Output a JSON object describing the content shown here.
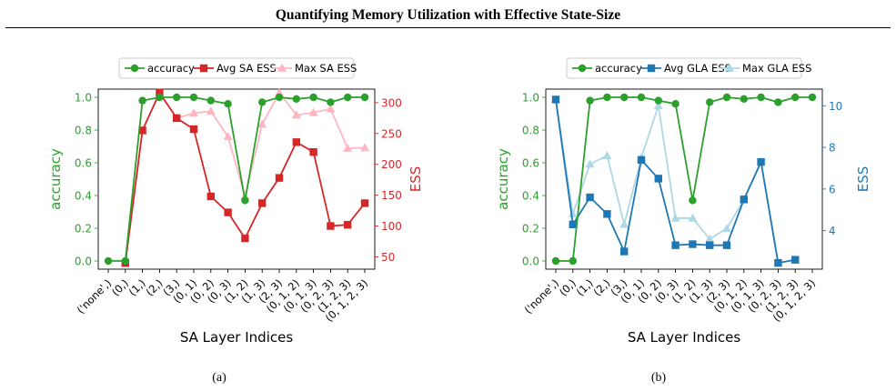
{
  "page": {
    "title": "Quantifying Memory Utilization with Effective State-Size",
    "captions": [
      "(a)",
      "(b)"
    ]
  },
  "colors": {
    "accuracy": "#2ca02c",
    "avg_sa": "#d62728",
    "max_sa": "#ffb6c1",
    "avg_gla": "#1f77b4",
    "max_gla": "#add8e6"
  },
  "chart_data": [
    {
      "type": "line",
      "categories": [
        "('none',)",
        "(0,)",
        "(1,)",
        "(2,)",
        "(3,)",
        "(0, 1)",
        "(0, 2)",
        "(0, 3)",
        "(1, 2)",
        "(1, 3)",
        "(2, 3)",
        "(0, 1, 2)",
        "(0, 1, 3)",
        "(0, 2, 3)",
        "(1, 2, 3)",
        "(0, 1, 2, 3)"
      ],
      "xlabel": "SA Layer Indices",
      "ylabel_left": "accuracy",
      "ylabel_right": "ESS",
      "ylim_left": [
        -0.05,
        1.05
      ],
      "ylim_right": [
        30,
        322
      ],
      "yticks_left": [
        "0.0",
        "0.2",
        "0.4",
        "0.6",
        "0.8",
        "1.0"
      ],
      "yticks_right": [
        "50",
        "100",
        "150",
        "200",
        "250",
        "300"
      ],
      "legend": "top",
      "series": [
        {
          "name": "accuracy",
          "axis": "left",
          "marker": "circle",
          "color": "#2ca02c",
          "values": [
            0.0,
            0.0,
            0.98,
            1.0,
            1.0,
            1.0,
            0.98,
            0.96,
            0.37,
            0.97,
            1.0,
            0.99,
            1.0,
            0.97,
            1.0,
            1.0
          ]
        },
        {
          "name": "Avg SA ESS",
          "axis": "right",
          "marker": "square",
          "color": "#d62728",
          "values": [
            null,
            40,
            255,
            316,
            275,
            257,
            148,
            122,
            80,
            137,
            178,
            236,
            220,
            100,
            102,
            137
          ]
        },
        {
          "name": "Max SA ESS",
          "axis": "right",
          "marker": "triangle",
          "color": "#ffb6c1",
          "values": [
            null,
            40,
            255,
            316,
            275,
            283,
            286,
            245,
            148,
            265,
            316,
            280,
            284,
            290,
            226,
            227
          ]
        }
      ]
    },
    {
      "type": "line",
      "categories": [
        "('none',)",
        "(0,)",
        "(1,)",
        "(2,)",
        "(3,)",
        "(0, 1)",
        "(0, 2)",
        "(0, 3)",
        "(1, 2)",
        "(1, 3)",
        "(2, 3)",
        "(0, 1, 2)",
        "(0, 1, 3)",
        "(0, 2, 3)",
        "(1, 2, 3)",
        "(0, 1, 2, 3)"
      ],
      "xlabel": "SA Layer Indices",
      "ylabel_left": "accuracy",
      "ylabel_right": "ESS",
      "ylim_left": [
        -0.05,
        1.05
      ],
      "ylim_right": [
        2.15,
        10.8
      ],
      "yticks_left": [
        "0.0",
        "0.2",
        "0.4",
        "0.6",
        "0.8",
        "1.0"
      ],
      "yticks_right": [
        "4",
        "6",
        "8",
        "10"
      ],
      "legend": "top",
      "series": [
        {
          "name": "accuracy",
          "axis": "left",
          "marker": "circle",
          "color": "#2ca02c",
          "values": [
            0.0,
            0.0,
            0.98,
            1.0,
            1.0,
            1.0,
            0.98,
            0.96,
            0.37,
            0.97,
            1.0,
            0.99,
            1.0,
            0.97,
            1.0,
            1.0
          ]
        },
        {
          "name": "Avg GLA ESS",
          "axis": "right",
          "marker": "square",
          "color": "#1f77b4",
          "values": [
            10.3,
            4.3,
            5.6,
            4.8,
            3.0,
            7.4,
            6.5,
            3.3,
            3.35,
            3.3,
            3.3,
            5.5,
            7.3,
            2.45,
            2.6,
            null
          ]
        },
        {
          "name": "Max GLA ESS",
          "axis": "right",
          "marker": "triangle",
          "color": "#add8e6",
          "values": [
            10.3,
            4.8,
            7.2,
            7.6,
            4.3,
            7.5,
            10.0,
            4.6,
            4.6,
            3.6,
            4.1,
            5.5,
            7.3,
            2.45,
            2.6,
            null
          ]
        }
      ]
    }
  ]
}
